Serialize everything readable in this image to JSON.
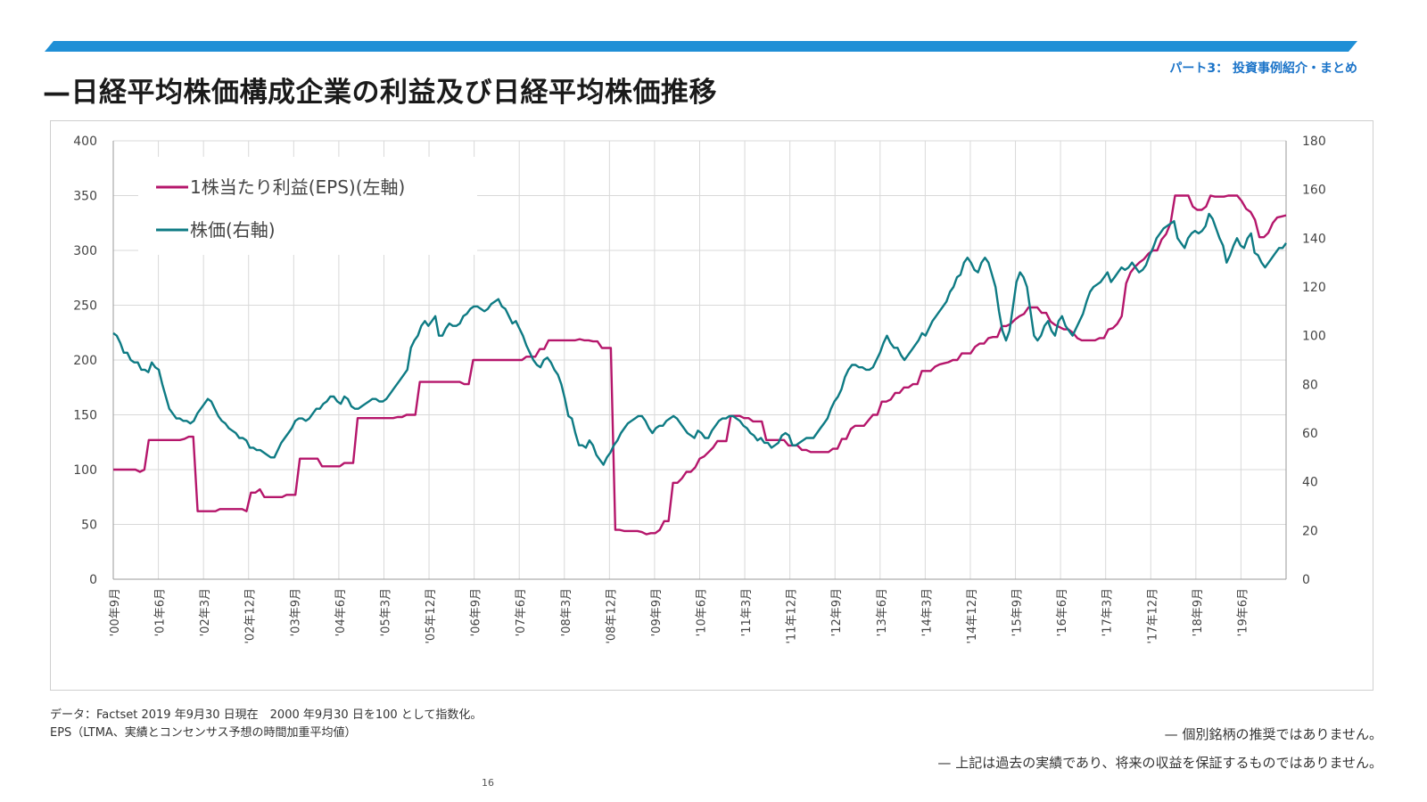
{
  "header": {
    "section_label": "パート3： 投資事例紹介・まとめ",
    "title": "—日経平均株価構成企業の利益及び日経平均株価推移",
    "bar_color": "#1f8fd6"
  },
  "chart_data": {
    "type": "line",
    "left_axis": {
      "min": 0,
      "max": 400,
      "ticks": [
        "0",
        "50",
        "100",
        "150",
        "200",
        "250",
        "300",
        "350",
        "400"
      ]
    },
    "right_axis": {
      "min": 0,
      "max": 180,
      "ticks": [
        "0",
        "20",
        "40",
        "60",
        "80",
        "100",
        "120",
        "140",
        "160",
        "180"
      ]
    },
    "x_axis": {
      "ticks": [
        "'00年9月",
        "'01年6月",
        "'02年3月",
        "'02年12月",
        "'03年9月",
        "'04年6月",
        "'05年3月",
        "'05年12月",
        "'06年9月",
        "'07年6月",
        "'08年3月",
        "'08年12月",
        "'09年9月",
        "'10年6月",
        "'11年3月",
        "'11年12月",
        "'12年9月",
        "'13年6月",
        "'14年3月",
        "'14年12月",
        "'15年9月",
        "'16年6月",
        "'17年3月",
        "'17年12月",
        "'18年9月",
        "'19年6月"
      ]
    },
    "grid": true,
    "legend_position": "top-left",
    "series": [
      {
        "name": "1株当たり利益(EPS)(左軸)",
        "axis": "left",
        "color": "#b5166b",
        "values": [
          100,
          100,
          100,
          100,
          100,
          100,
          98,
          100,
          127,
          127,
          127,
          127,
          127,
          127,
          127,
          127,
          128,
          130,
          130,
          62,
          62,
          62,
          62,
          62,
          64,
          64,
          64,
          64,
          64,
          64,
          62,
          79,
          79,
          82,
          75,
          75,
          75,
          75,
          75,
          77,
          77,
          77,
          110,
          110,
          110,
          110,
          110,
          103,
          103,
          103,
          103,
          103,
          106,
          106,
          106,
          147,
          147,
          147,
          147,
          147,
          147,
          147,
          147,
          147,
          148,
          148,
          150,
          150,
          150,
          180,
          180,
          180,
          180,
          180,
          180,
          180,
          180,
          180,
          180,
          178,
          178,
          200,
          200,
          200,
          200,
          200,
          200,
          200,
          200,
          200,
          200,
          200,
          200,
          203,
          203,
          203,
          210,
          210,
          218,
          218,
          218,
          218,
          218,
          218,
          218,
          219,
          218,
          218,
          217,
          217,
          211,
          211,
          211,
          45,
          45,
          44,
          44,
          44,
          44,
          43,
          41,
          42,
          42,
          45,
          53,
          53,
          88,
          88,
          92,
          98,
          98,
          102,
          110,
          112,
          116,
          120,
          126,
          126,
          126,
          149,
          149,
          149,
          147,
          147,
          144,
          144,
          144,
          127,
          127,
          127,
          127,
          127,
          122,
          122,
          122,
          118,
          118,
          116,
          116,
          116,
          116,
          116,
          119,
          119,
          128,
          128,
          137,
          140,
          140,
          140,
          145,
          150,
          150,
          162,
          162,
          164,
          170,
          170,
          175,
          175,
          178,
          178,
          190,
          190,
          190,
          194,
          196,
          197,
          198,
          200,
          200,
          206,
          206,
          206,
          212,
          215,
          215,
          220,
          221,
          221,
          231,
          231,
          233,
          237,
          240,
          242,
          248,
          248,
          248,
          243,
          243,
          235,
          232,
          230,
          228,
          228,
          225,
          220,
          218,
          218,
          218,
          218,
          220,
          220,
          228,
          229,
          233,
          240,
          270,
          280,
          285,
          289,
          292,
          297,
          300,
          300,
          310,
          315,
          325,
          350,
          350,
          350,
          350,
          340,
          337,
          337,
          340,
          350,
          349,
          349,
          349,
          350,
          350,
          350,
          345,
          338,
          335,
          328,
          312,
          312,
          316,
          325,
          330,
          331,
          332
        ]
      },
      {
        "name": "株価(右軸)",
        "axis": "right",
        "color": "#0e7b84",
        "values": [
          101,
          100,
          97,
          93,
          93,
          90,
          89,
          89,
          86,
          86,
          85,
          89,
          87,
          86,
          80,
          75,
          70,
          68,
          66,
          66,
          65,
          65,
          64,
          65,
          68,
          70,
          72,
          74,
          73,
          70,
          67,
          65,
          64,
          62,
          61,
          60,
          58,
          58,
          57,
          54,
          54,
          53,
          53,
          52,
          51,
          50,
          50,
          53,
          56,
          58,
          60,
          62,
          65,
          66,
          66,
          65,
          66,
          68,
          70,
          70,
          72,
          73,
          75,
          75,
          73,
          72,
          75,
          74,
          71,
          70,
          70,
          71,
          72,
          73,
          74,
          74,
          73,
          73,
          74,
          76,
          78,
          80,
          82,
          84,
          86,
          95,
          98,
          100,
          104,
          106,
          104,
          106,
          108,
          100,
          100,
          103,
          105,
          104,
          104,
          105,
          108,
          109,
          111,
          112,
          112,
          111,
          110,
          111,
          113,
          114,
          115,
          112,
          111,
          108,
          105,
          106,
          103,
          100,
          96,
          93,
          90,
          88,
          87,
          90,
          91,
          89,
          86,
          84,
          80,
          74,
          67,
          66,
          60,
          55,
          55,
          54,
          57,
          55,
          51,
          49,
          47,
          50,
          52,
          55,
          57,
          60,
          62,
          64,
          65,
          66,
          67,
          67,
          65,
          62,
          60,
          62,
          63,
          63,
          65,
          66,
          67,
          66,
          64,
          62,
          60,
          59,
          58,
          61,
          60,
          58,
          58,
          61,
          63,
          65,
          66,
          66,
          67,
          67,
          66,
          65,
          63,
          62,
          60,
          59,
          57,
          58,
          56,
          56,
          54,
          55,
          56,
          59,
          60,
          59,
          55,
          55,
          56,
          57,
          58,
          58,
          58,
          60,
          62,
          64,
          66,
          70,
          73,
          75,
          78,
          83,
          86,
          88,
          88,
          87,
          87,
          86,
          86,
          87,
          90,
          93,
          97,
          100,
          97,
          95,
          95,
          92,
          90,
          92,
          94,
          96,
          98,
          101,
          100,
          103,
          106,
          108,
          110,
          112,
          114,
          118,
          120,
          124,
          125,
          130,
          132,
          130,
          127,
          126,
          130,
          132,
          130,
          125,
          120,
          110,
          102,
          98,
          102,
          112,
          122,
          126,
          124,
          120,
          110,
          100,
          98,
          100,
          104,
          106,
          102,
          100,
          106,
          108,
          104,
          102,
          100,
          103,
          106,
          109,
          114,
          118,
          120,
          121,
          122,
          124,
          126,
          122,
          124,
          126,
          128,
          127,
          128,
          130,
          128,
          126,
          127,
          129,
          133,
          136,
          140,
          142,
          144,
          145,
          146,
          147,
          140,
          138,
          136,
          140,
          142,
          143,
          142,
          143,
          145,
          150,
          148,
          144,
          140,
          137,
          130,
          133,
          137,
          140,
          137,
          136,
          140,
          142,
          134,
          133,
          130,
          128,
          130,
          132,
          134,
          136,
          136,
          138
        ]
      }
    ]
  },
  "notes": {
    "line1": "データ：Factset 2019 年9月30 日現在　2000 年9月30 日を100 として指数化。",
    "line2": "EPS（LTMA、実績とコンセンサス予想の時間加重平均値）"
  },
  "disclaimers": {
    "d1": "— 個別銘柄の推奨ではありません。",
    "d2": "— 上記は過去の実績であり、将来の収益を保証するものではありません。"
  },
  "page_number": "16"
}
